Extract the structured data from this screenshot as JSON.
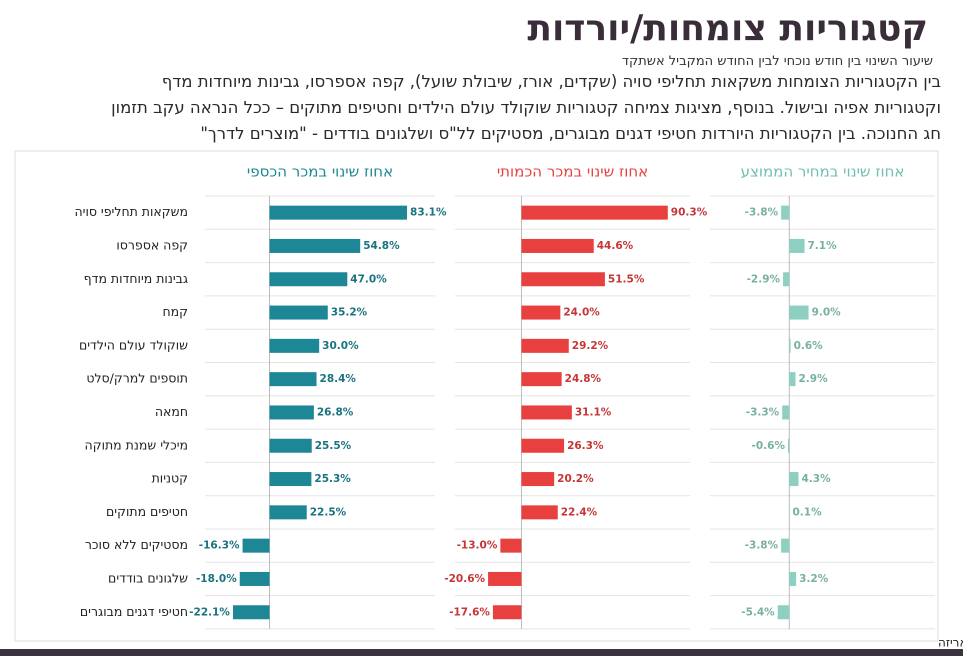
{
  "header": {
    "title": "קטגוריות צומחות/יורדות",
    "subtitle": "שיעור השינוי בין חודש נוכחי לבין החודש המקביל אשתקד",
    "paragraph": [
      "בין הקטגוריות הצומחות משקאות תחליפי סויה (שקדים, אורז, שיבולת שועל), קפה אספרסו, גבינות מיוחדות מדף",
      "וקטגוריות אפיה ובישול. בנוסף, מציגות צמיחה קטגוריות שוקולד עולם הילדים וחטיפים מתוקים  – ככל הנראה עקב תזמון",
      "חג החנוכה. בין הקטגוריות היורדות חטיפי דגנים מבוגרים, מסטיקים לל\"ס ושלגונים בודדים - \"מוצרים לדרך\""
    ]
  },
  "chart_data": [
    {
      "type": "bar",
      "orientation": "horizontal",
      "title": "אחוז שינוי במכר הכספי",
      "color": "#1e8796",
      "categories": [
        "משקאות תחליפי סויה",
        "קפה אספרסו",
        "גבינות מיוחדות מדף",
        "קמח",
        "שוקולד עולם הילדים",
        "תוספים למרק/סלט",
        "חמאה",
        "מיכלי שמנת מתוקה",
        "קטניות",
        "חטיפים מתוקים",
        "מסטיקים ללא סוכר",
        "שלגונים בודדים",
        "חטיפי דגנים מבוגרים"
      ],
      "values": [
        83.1,
        54.8,
        47.0,
        35.2,
        30.0,
        28.4,
        26.8,
        25.5,
        25.3,
        22.5,
        -16.3,
        -18.0,
        -22.1
      ],
      "value_labels": [
        "83.1%",
        "54.8%",
        "47.0%",
        "35.2%",
        "30.0%",
        "28.4%",
        "26.8%",
        "25.5%",
        "25.3%",
        "22.5%",
        "-16.3%",
        "-18.0%",
        "-22.1%"
      ],
      "xlim": [
        -39,
        100
      ]
    },
    {
      "type": "bar",
      "orientation": "horizontal",
      "title": "אחוז שינוי במכר הכמותי",
      "color": "#e8403f",
      "values": [
        90.3,
        44.6,
        51.5,
        24.0,
        29.2,
        24.8,
        31.1,
        26.3,
        20.2,
        22.4,
        -13.0,
        -20.6,
        -17.6
      ],
      "value_labels": [
        "90.3%",
        "44.6%",
        "51.5%",
        "24.0%",
        "29.2%",
        "24.8%",
        "31.1%",
        "26.3%",
        "20.2%",
        "22.4%",
        "-13.0%",
        "-20.6%",
        "-17.6%"
      ],
      "xlim": [
        -41,
        104
      ]
    },
    {
      "type": "bar",
      "orientation": "horizontal",
      "title": "אחוז שינוי במחיר הממוצע",
      "color": "#8dcfc0",
      "values": [
        -3.8,
        7.1,
        -2.9,
        9.0,
        0.6,
        2.9,
        -3.3,
        -0.6,
        4.3,
        0.1,
        -3.8,
        3.2,
        -5.4
      ],
      "value_labels": [
        "-3.8%",
        "7.1%",
        "-2.9%",
        "9.0%",
        "0.6%",
        "2.9%",
        "-3.3%",
        "-0.6%",
        "4.3%",
        "0.1%",
        "-3.8%",
        "3.2%",
        "-5.4%"
      ],
      "xlim": [
        -37,
        68
      ]
    }
  ],
  "footnote": "*מכר כמותי/מחיר ממוצע לפי משקל/נפח/יח' באריזה"
}
